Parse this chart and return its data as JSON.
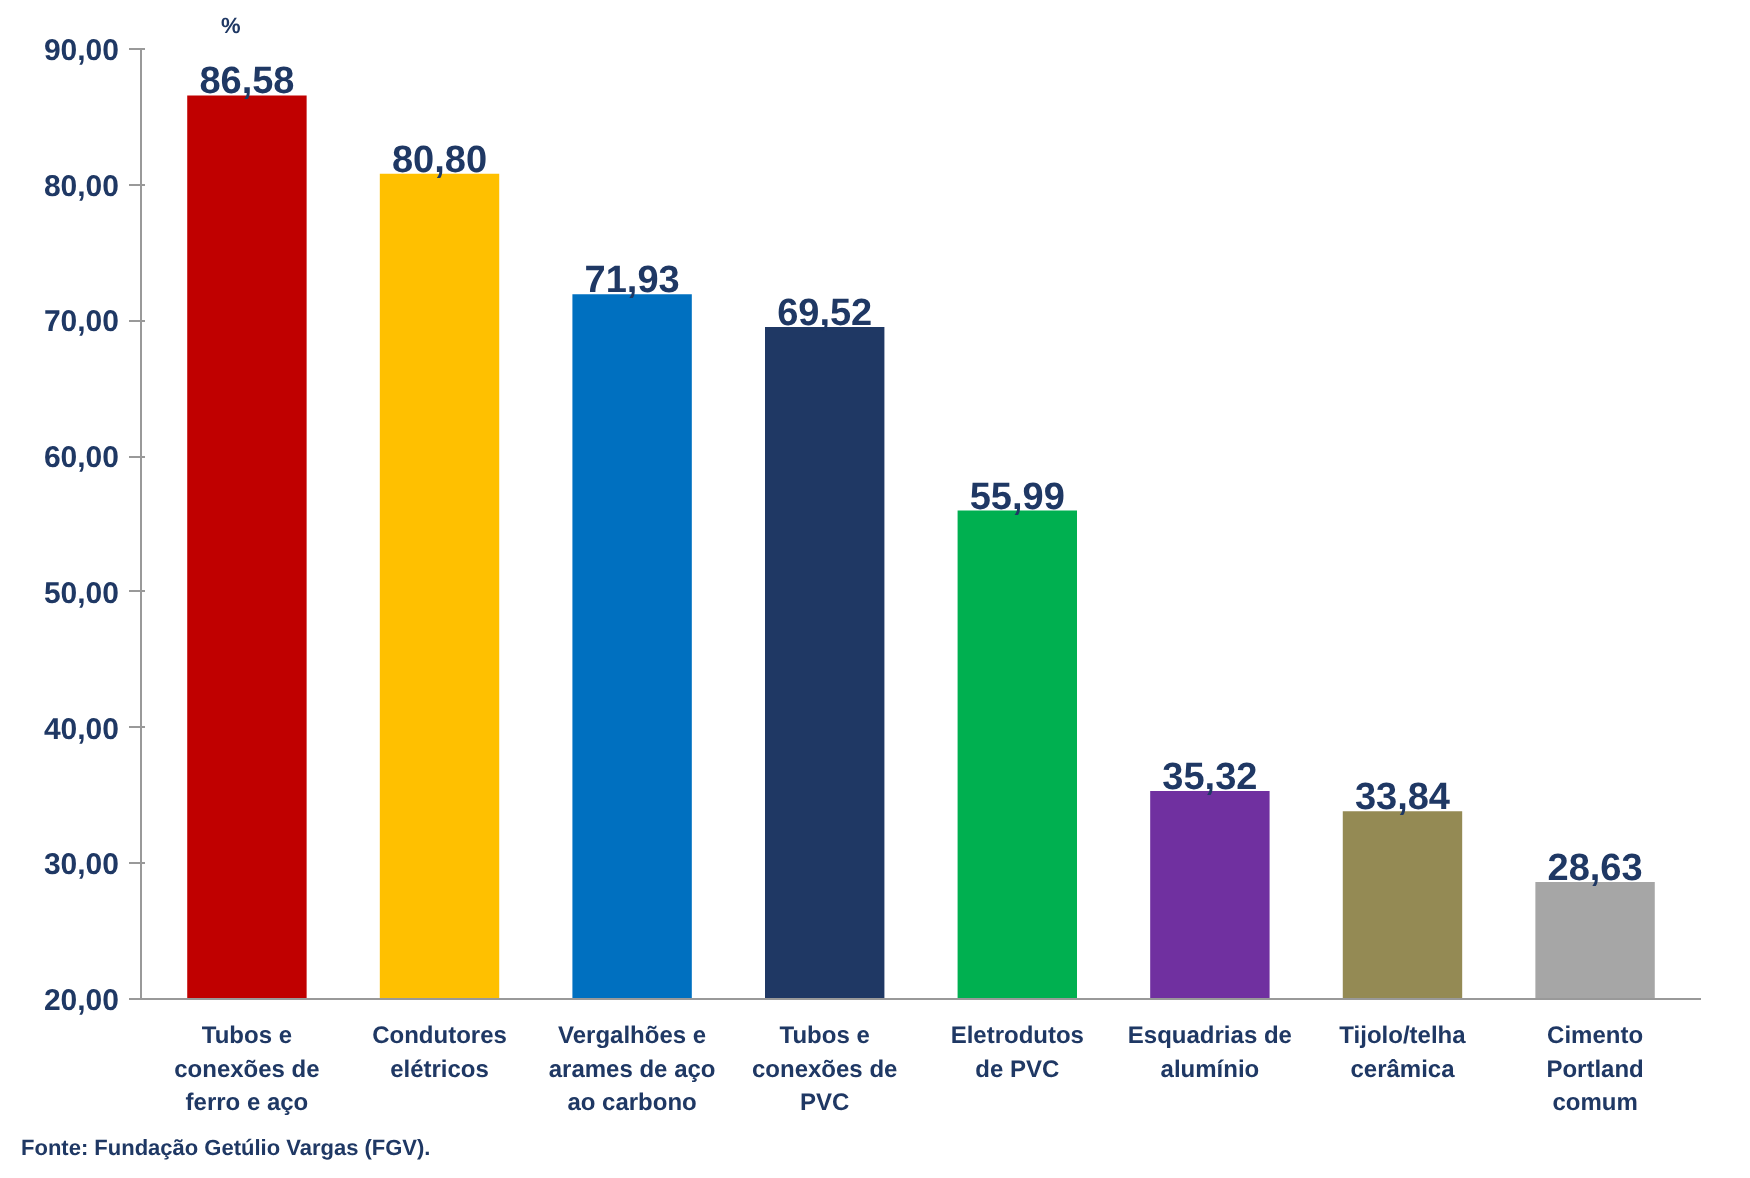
{
  "chart_data": {
    "type": "bar",
    "ylabel": "%",
    "categories": [
      "Tubos e conexões de ferro e aço",
      "Condutores elétricos",
      "Vergalhões e arames de aço ao carbono",
      "Tubos e conexões de PVC",
      "Eletrodutos de PVC",
      "Esquadrias de alumínio",
      "Tijolo/telha cerâmica",
      "Cimento Portland comum"
    ],
    "values": [
      86.58,
      80.8,
      71.93,
      69.52,
      55.99,
      35.32,
      33.84,
      28.63
    ],
    "value_labels": [
      "86,58",
      "80,80",
      "71,93",
      "69,52",
      "55,99",
      "35,32",
      "33,84",
      "28,63"
    ],
    "colors": [
      "#c00000",
      "#ffc000",
      "#0070c0",
      "#1f3864",
      "#00b050",
      "#7030a0",
      "#948a54",
      "#a6a6a6"
    ],
    "ylim": [
      20,
      90
    ],
    "yticks": [
      {
        "value": 20,
        "label": "20,00"
      },
      {
        "value": 30,
        "label": "30,00"
      },
      {
        "value": 40,
        "label": "40,00"
      },
      {
        "value": 50,
        "label": "50,00"
      },
      {
        "value": 60,
        "label": "60,00"
      },
      {
        "value": 70,
        "label": "70,00"
      },
      {
        "value": 80,
        "label": "80,00"
      },
      {
        "value": 90,
        "label": "90,00"
      }
    ],
    "grid": false,
    "annotations": [
      "Fonte: Fundação Getúlio Vargas (FGV)."
    ]
  }
}
